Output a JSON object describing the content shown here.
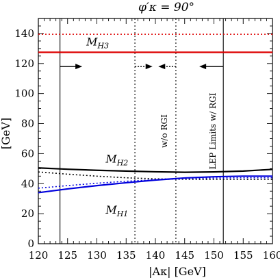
{
  "chart_data": {
    "type": "line",
    "title": "φ′κ = 90°",
    "xlabel": "|Aκ| [GeV]",
    "ylabel": "[GeV]",
    "xlim": [
      120,
      160
    ],
    "ylim": [
      0,
      150
    ],
    "xticks": [
      120,
      125,
      130,
      135,
      140,
      145,
      150,
      155,
      160
    ],
    "yticks": [
      0,
      20,
      40,
      60,
      80,
      100,
      120,
      140
    ],
    "grid": false,
    "colors": {
      "red": "#dd0000",
      "blue": "#0000dd",
      "black": "#000000"
    },
    "series": [
      {
        "name": "M_H3",
        "label_main": "M",
        "label_sub": "H3",
        "color": "#dd0000",
        "style": "solid",
        "x": [
          120,
          160
        ],
        "y": [
          127.5,
          127.5
        ]
      },
      {
        "color": "#dd0000",
        "style": "dotted",
        "x": [
          120,
          160
        ],
        "y": [
          139.5,
          139.5
        ]
      },
      {
        "name": "M_H2",
        "label_main": "M",
        "label_sub": "H2",
        "color": "#000000",
        "style": "solid",
        "x": [
          120,
          125,
          130,
          135,
          140,
          145,
          150,
          155,
          160
        ],
        "y": [
          50.5,
          49.6,
          48.9,
          48.4,
          47.9,
          47.6,
          47.8,
          48.4,
          49.5
        ]
      },
      {
        "color": "#000000",
        "style": "dotted",
        "x": [
          120,
          125,
          130,
          135,
          140,
          145,
          150,
          155,
          160
        ],
        "y": [
          47.8,
          46.3,
          45.0,
          43.9,
          43.2,
          42.9,
          42.8,
          42.8,
          42.9
        ]
      },
      {
        "name": "M_H1",
        "label_main": "M",
        "label_sub": "H1",
        "color": "#0000dd",
        "style": "solid",
        "x": [
          120,
          125,
          130,
          135,
          140,
          145,
          150,
          155,
          160
        ],
        "y": [
          34.0,
          36.5,
          38.7,
          40.6,
          42.4,
          43.8,
          44.6,
          45.0,
          45.0
        ]
      },
      {
        "color": "#0000dd",
        "style": "dotted",
        "x": [
          120,
          125,
          130,
          135,
          140,
          145,
          150,
          155,
          160
        ],
        "y": [
          37.0,
          38.7,
          40.3,
          41.6,
          42.6,
          43.3,
          43.7,
          43.9,
          43.9
        ]
      }
    ],
    "vlines": [
      {
        "x": 123.7,
        "style": "solid"
      },
      {
        "x": 151.6,
        "style": "solid"
      },
      {
        "x": 136.5,
        "style": "dotted"
      },
      {
        "x": 143.5,
        "style": "dotted"
      }
    ],
    "arrows": [
      {
        "from": 123.7,
        "to": 127.5,
        "y": 118,
        "style": "solid"
      },
      {
        "from": 151.6,
        "to": 147.5,
        "y": 118,
        "style": "solid"
      },
      {
        "from": 136.5,
        "to": 139.5,
        "y": 118,
        "style": "dotted"
      },
      {
        "from": 143.5,
        "to": 140.5,
        "y": 118,
        "style": "dotted"
      }
    ],
    "annotations": [
      {
        "text": "w/o RGI",
        "x": 142,
        "y": 75
      },
      {
        "text": "LEP Limits w/ RGI",
        "x": 150.3,
        "y": 75
      }
    ]
  }
}
